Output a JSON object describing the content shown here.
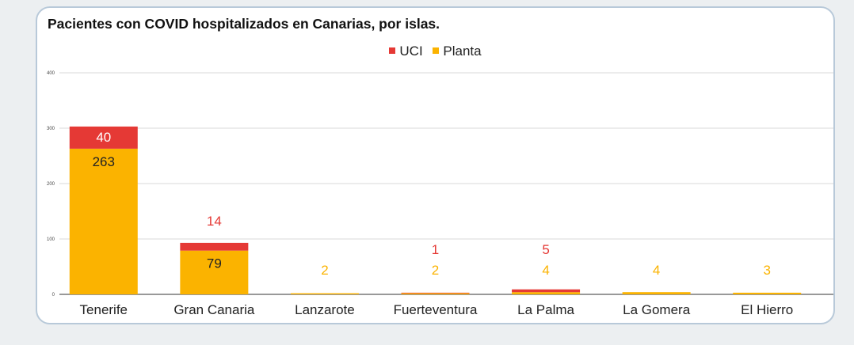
{
  "chart_data": {
    "type": "bar",
    "stacked": true,
    "title": "Pacientes con COVID hospitalizados en Canarias, por islas.",
    "categories": [
      "Tenerife",
      "Gran Canaria",
      "Lanzarote",
      "Fuerteventura",
      "La Palma",
      "La Gomera",
      "El Hierro"
    ],
    "series": [
      {
        "name": "Planta",
        "values": [
          263,
          79,
          2,
          2,
          4,
          4,
          3
        ],
        "color": "#fbb300"
      },
      {
        "name": "UCI",
        "values": [
          40,
          14,
          null,
          1,
          5,
          null,
          null
        ],
        "color": "#e53935"
      }
    ],
    "ylim": [
      0,
      400
    ],
    "yticks": [
      "0",
      "100",
      "200",
      "300",
      "400"
    ],
    "grid": true,
    "legend_position": "top-center"
  }
}
